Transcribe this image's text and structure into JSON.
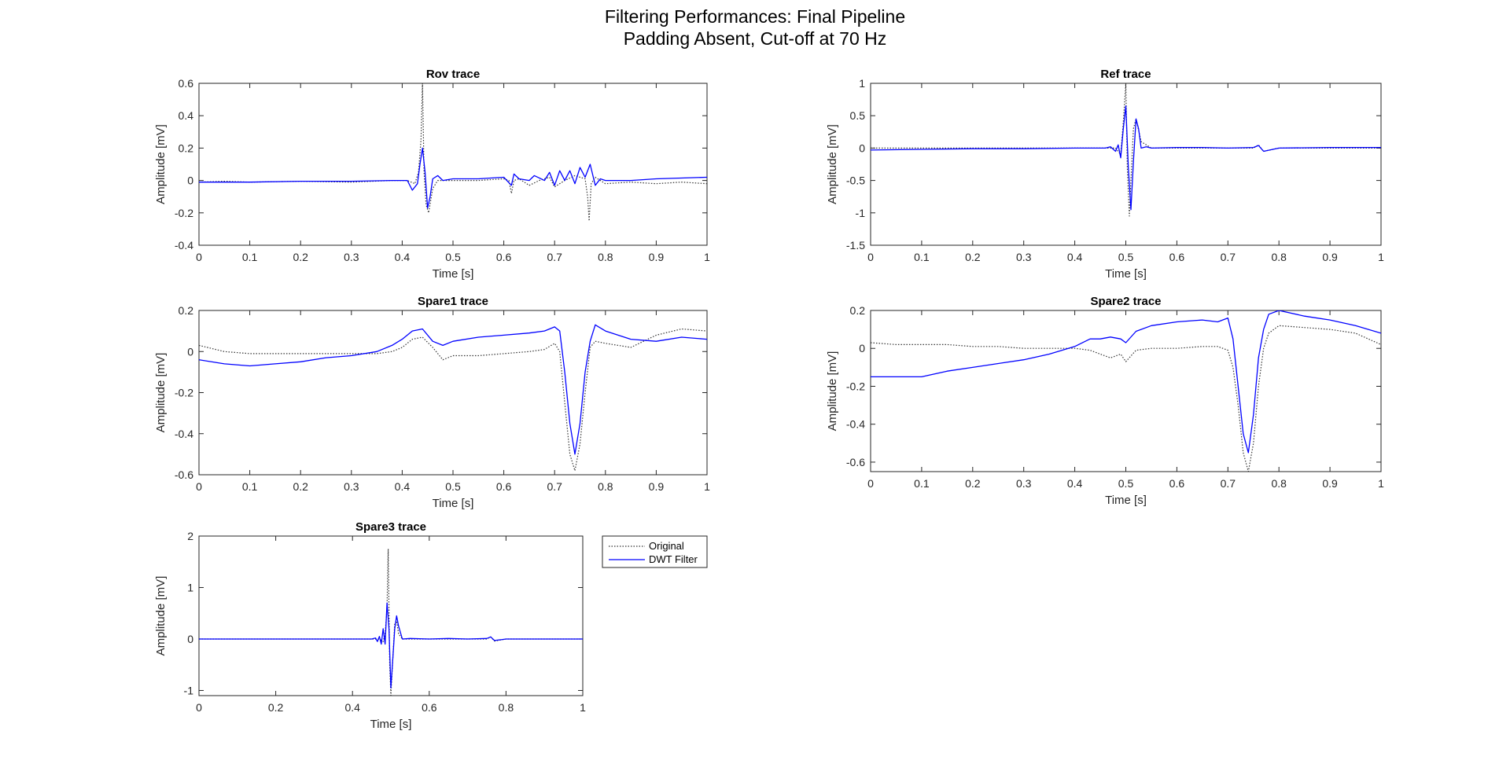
{
  "figure": {
    "title_line1": "Filtering Performances: Final Pipeline",
    "title_line2": "Padding Absent, Cut-off at 70 Hz"
  },
  "colors": {
    "original": "#333333",
    "filtered": "#0000ff",
    "axes": "#262626"
  },
  "chart_data": [
    {
      "type": "line",
      "title": "Rov trace",
      "xlabel": "Time [s]",
      "ylabel": "Amplitude [mV]",
      "xlim": [
        0,
        1
      ],
      "ylim": [
        -0.4,
        0.6
      ],
      "xticks": [
        0,
        0.1,
        0.2,
        0.3,
        0.4,
        0.5,
        0.6,
        0.7,
        0.8,
        0.9,
        1
      ],
      "xtick_labels": [
        "0",
        "0.1",
        "0.2",
        "0.3",
        "0.4",
        "0.5",
        "0.6",
        "0.7",
        "0.8",
        "0.9",
        "1"
      ],
      "yticks": [
        -0.4,
        -0.2,
        0,
        0.2,
        0.4,
        0.6
      ],
      "ytick_labels": [
        "-0.4",
        "-0.2",
        "0",
        "0.2",
        "0.4",
        "0.6"
      ],
      "grid": false,
      "series": [
        {
          "name": "Original",
          "style": "dotted",
          "x": [
            0,
            0.05,
            0.1,
            0.2,
            0.3,
            0.38,
            0.41,
            0.425,
            0.432,
            0.437,
            0.44,
            0.443,
            0.447,
            0.452,
            0.46,
            0.47,
            0.5,
            0.55,
            0.6,
            0.61,
            0.615,
            0.62,
            0.63,
            0.65,
            0.67,
            0.69,
            0.7,
            0.72,
            0.74,
            0.76,
            0.765,
            0.768,
            0.772,
            0.78,
            0.8,
            0.85,
            0.9,
            0.95,
            1
          ],
          "y": [
            -0.01,
            -0.005,
            -0.01,
            -0.005,
            -0.01,
            0.0,
            0.0,
            -0.02,
            0.05,
            0.25,
            0.6,
            0.05,
            -0.15,
            -0.2,
            -0.05,
            0.0,
            0.0,
            0.0,
            0.01,
            0.0,
            -0.08,
            0.0,
            0.01,
            -0.03,
            0.0,
            0.02,
            -0.04,
            0.0,
            0.03,
            0.01,
            -0.1,
            -0.25,
            -0.02,
            0.02,
            -0.02,
            -0.01,
            -0.02,
            -0.01,
            -0.02
          ]
        },
        {
          "name": "DWT Filter",
          "style": "solid",
          "x": [
            0,
            0.1,
            0.2,
            0.3,
            0.38,
            0.41,
            0.42,
            0.43,
            0.435,
            0.44,
            0.445,
            0.45,
            0.455,
            0.46,
            0.47,
            0.48,
            0.5,
            0.55,
            0.6,
            0.615,
            0.62,
            0.63,
            0.65,
            0.66,
            0.68,
            0.69,
            0.7,
            0.71,
            0.72,
            0.73,
            0.74,
            0.75,
            0.76,
            0.77,
            0.78,
            0.79,
            0.8,
            0.85,
            0.9,
            0.95,
            1
          ],
          "y": [
            -0.01,
            -0.01,
            -0.005,
            -0.005,
            0.0,
            0.0,
            -0.06,
            -0.02,
            0.1,
            0.2,
            0.05,
            -0.17,
            -0.1,
            0.01,
            0.03,
            0.0,
            0.01,
            0.01,
            0.02,
            -0.03,
            0.04,
            0.01,
            0.0,
            0.03,
            0.0,
            0.05,
            -0.03,
            0.06,
            0.0,
            0.06,
            -0.02,
            0.08,
            0.02,
            0.1,
            -0.03,
            0.01,
            0.0,
            0.0,
            0.01,
            0.015,
            0.02
          ]
        }
      ]
    },
    {
      "type": "line",
      "title": "Ref trace",
      "xlabel": "Time [s]",
      "ylabel": "Amplitude [mV]",
      "xlim": [
        0,
        1
      ],
      "ylim": [
        -1.5,
        1
      ],
      "xticks": [
        0,
        0.1,
        0.2,
        0.3,
        0.4,
        0.5,
        0.6,
        0.7,
        0.8,
        0.9,
        1
      ],
      "xtick_labels": [
        "0",
        "0.1",
        "0.2",
        "0.3",
        "0.4",
        "0.5",
        "0.6",
        "0.7",
        "0.8",
        "0.9",
        "1"
      ],
      "yticks": [
        -1.5,
        -1,
        -0.5,
        0,
        0.5,
        1
      ],
      "ytick_labels": [
        "-1.5",
        "-1",
        "-0.5",
        "0",
        "0.5",
        "1"
      ],
      "grid": false,
      "series": [
        {
          "name": "Original",
          "style": "dotted",
          "x": [
            0,
            0.1,
            0.2,
            0.3,
            0.4,
            0.47,
            0.48,
            0.49,
            0.495,
            0.5,
            0.503,
            0.507,
            0.51,
            0.515,
            0.52,
            0.53,
            0.55,
            0.6,
            0.7,
            0.75,
            0.76,
            0.77,
            0.8,
            0.9,
            1
          ],
          "y": [
            0.0,
            0.0,
            0.0,
            0.0,
            0.0,
            0.0,
            0.0,
            -0.1,
            0.4,
            1.0,
            -0.3,
            -1.05,
            -0.5,
            0.3,
            0.45,
            0.1,
            0.0,
            0.0,
            0.0,
            0.0,
            0.05,
            -0.05,
            0.0,
            0.0,
            0.0
          ]
        },
        {
          "name": "DWT Filter",
          "style": "solid",
          "x": [
            0,
            0.1,
            0.2,
            0.3,
            0.4,
            0.46,
            0.47,
            0.48,
            0.485,
            0.49,
            0.495,
            0.5,
            0.505,
            0.51,
            0.515,
            0.52,
            0.525,
            0.53,
            0.54,
            0.55,
            0.6,
            0.65,
            0.7,
            0.75,
            0.76,
            0.77,
            0.8,
            0.9,
            1
          ],
          "y": [
            -0.03,
            -0.02,
            -0.01,
            -0.01,
            0.0,
            0.0,
            0.02,
            -0.05,
            0.05,
            -0.15,
            0.3,
            0.65,
            -0.3,
            -0.95,
            -0.2,
            0.45,
            0.3,
            0.0,
            0.02,
            0.0,
            0.01,
            0.01,
            0.0,
            0.01,
            0.04,
            -0.05,
            0.0,
            0.01,
            0.01
          ]
        }
      ]
    },
    {
      "type": "line",
      "title": "Spare1 trace",
      "xlabel": "Time [s]",
      "ylabel": "Amplitude [mV]",
      "xlim": [
        0,
        1
      ],
      "ylim": [
        -0.6,
        0.2
      ],
      "xticks": [
        0,
        0.1,
        0.2,
        0.3,
        0.4,
        0.5,
        0.6,
        0.7,
        0.8,
        0.9,
        1
      ],
      "xtick_labels": [
        "0",
        "0.1",
        "0.2",
        "0.3",
        "0.4",
        "0.5",
        "0.6",
        "0.7",
        "0.8",
        "0.9",
        "1"
      ],
      "yticks": [
        -0.6,
        -0.4,
        -0.2,
        0,
        0.2
      ],
      "ytick_labels": [
        "-0.6",
        "-0.4",
        "-0.2",
        "0",
        "0.2"
      ],
      "grid": false,
      "series": [
        {
          "name": "Original",
          "style": "dotted",
          "x": [
            0,
            0.05,
            0.1,
            0.15,
            0.2,
            0.25,
            0.3,
            0.35,
            0.38,
            0.4,
            0.42,
            0.44,
            0.46,
            0.48,
            0.5,
            0.55,
            0.6,
            0.65,
            0.68,
            0.7,
            0.71,
            0.72,
            0.73,
            0.74,
            0.75,
            0.76,
            0.77,
            0.78,
            0.8,
            0.85,
            0.9,
            0.95,
            1
          ],
          "y": [
            0.03,
            0.0,
            -0.01,
            -0.01,
            -0.01,
            -0.01,
            -0.01,
            -0.01,
            0.0,
            0.02,
            0.06,
            0.07,
            0.02,
            -0.04,
            -0.02,
            -0.02,
            -0.01,
            0.0,
            0.01,
            0.04,
            0.0,
            -0.25,
            -0.5,
            -0.58,
            -0.45,
            -0.2,
            0.02,
            0.05,
            0.04,
            0.02,
            0.08,
            0.11,
            0.1
          ]
        },
        {
          "name": "DWT Filter",
          "style": "solid",
          "x": [
            0,
            0.05,
            0.1,
            0.15,
            0.2,
            0.25,
            0.3,
            0.35,
            0.38,
            0.4,
            0.42,
            0.44,
            0.46,
            0.48,
            0.5,
            0.55,
            0.6,
            0.65,
            0.68,
            0.7,
            0.71,
            0.72,
            0.73,
            0.74,
            0.75,
            0.76,
            0.77,
            0.78,
            0.8,
            0.85,
            0.9,
            0.95,
            1
          ],
          "y": [
            -0.04,
            -0.06,
            -0.07,
            -0.06,
            -0.05,
            -0.03,
            -0.02,
            0.0,
            0.03,
            0.06,
            0.1,
            0.11,
            0.05,
            0.03,
            0.05,
            0.07,
            0.08,
            0.09,
            0.1,
            0.12,
            0.1,
            -0.1,
            -0.35,
            -0.5,
            -0.35,
            -0.1,
            0.05,
            0.13,
            0.1,
            0.06,
            0.05,
            0.07,
            0.06
          ]
        }
      ]
    },
    {
      "type": "line",
      "title": "Spare2 trace",
      "xlabel": "Time [s]",
      "ylabel": "Amplitude [mV]",
      "xlim": [
        0,
        1
      ],
      "ylim": [
        -0.65,
        0.2
      ],
      "xticks": [
        0,
        0.1,
        0.2,
        0.3,
        0.4,
        0.5,
        0.6,
        0.7,
        0.8,
        0.9,
        1
      ],
      "xtick_labels": [
        "0",
        "0.1",
        "0.2",
        "0.3",
        "0.4",
        "0.5",
        "0.6",
        "0.7",
        "0.8",
        "0.9",
        "1"
      ],
      "yticks": [
        -0.6,
        -0.4,
        -0.2,
        0,
        0.2
      ],
      "ytick_labels": [
        "-0.6",
        "-0.4",
        "-0.2",
        "0",
        "0.2"
      ],
      "grid": false,
      "series": [
        {
          "name": "Original",
          "style": "dotted",
          "x": [
            0,
            0.05,
            0.1,
            0.15,
            0.2,
            0.25,
            0.3,
            0.35,
            0.4,
            0.43,
            0.45,
            0.47,
            0.49,
            0.5,
            0.52,
            0.55,
            0.6,
            0.65,
            0.68,
            0.7,
            0.71,
            0.72,
            0.73,
            0.74,
            0.75,
            0.76,
            0.77,
            0.78,
            0.8,
            0.85,
            0.9,
            0.95,
            1
          ],
          "y": [
            0.03,
            0.02,
            0.02,
            0.02,
            0.01,
            0.01,
            0.0,
            0.0,
            0.0,
            -0.01,
            -0.03,
            -0.05,
            -0.03,
            -0.07,
            -0.01,
            0.0,
            0.0,
            0.01,
            0.01,
            -0.01,
            -0.1,
            -0.3,
            -0.55,
            -0.65,
            -0.5,
            -0.2,
            0.0,
            0.08,
            0.12,
            0.11,
            0.1,
            0.08,
            0.02
          ]
        },
        {
          "name": "DWT Filter",
          "style": "solid",
          "x": [
            0,
            0.05,
            0.1,
            0.15,
            0.2,
            0.25,
            0.3,
            0.35,
            0.4,
            0.43,
            0.45,
            0.47,
            0.49,
            0.5,
            0.52,
            0.55,
            0.6,
            0.65,
            0.68,
            0.7,
            0.71,
            0.72,
            0.73,
            0.74,
            0.75,
            0.76,
            0.77,
            0.78,
            0.8,
            0.85,
            0.9,
            0.95,
            1
          ],
          "y": [
            -0.15,
            -0.15,
            -0.15,
            -0.12,
            -0.1,
            -0.08,
            -0.06,
            -0.03,
            0.01,
            0.05,
            0.05,
            0.06,
            0.05,
            0.03,
            0.09,
            0.12,
            0.14,
            0.15,
            0.14,
            0.16,
            0.05,
            -0.2,
            -0.45,
            -0.55,
            -0.35,
            -0.05,
            0.1,
            0.18,
            0.2,
            0.17,
            0.15,
            0.12,
            0.08
          ]
        }
      ]
    },
    {
      "type": "line",
      "title": "Spare3 trace",
      "xlabel": "Time [s]",
      "ylabel": "Amplitude [mV]",
      "xlim": [
        0,
        1
      ],
      "ylim": [
        -1.1,
        2
      ],
      "xticks": [
        0,
        0.2,
        0.4,
        0.6,
        0.8,
        1
      ],
      "xtick_labels": [
        "0",
        "0.2",
        "0.4",
        "0.6",
        "0.8",
        "1"
      ],
      "yticks": [
        -1,
        0,
        1,
        2
      ],
      "ytick_labels": [
        "-1",
        "0",
        "1",
        "2"
      ],
      "grid": false,
      "series": [
        {
          "name": "Original",
          "style": "dotted",
          "x": [
            0,
            0.1,
            0.2,
            0.3,
            0.4,
            0.46,
            0.47,
            0.48,
            0.485,
            0.49,
            0.493,
            0.497,
            0.5,
            0.505,
            0.51,
            0.515,
            0.52,
            0.53,
            0.55,
            0.6,
            0.7,
            0.75,
            0.76,
            0.77,
            0.8,
            0.9,
            1
          ],
          "y": [
            0.0,
            0.0,
            0.0,
            0.0,
            0.0,
            0.0,
            0.0,
            -0.05,
            0.1,
            0.6,
            1.75,
            -0.5,
            -1.1,
            -0.4,
            0.3,
            0.35,
            0.1,
            0.0,
            0.0,
            0.0,
            0.0,
            0.0,
            0.04,
            -0.04,
            0.0,
            0.0,
            0.0
          ]
        },
        {
          "name": "DWT Filter",
          "style": "solid",
          "x": [
            0,
            0.1,
            0.2,
            0.3,
            0.4,
            0.45,
            0.46,
            0.465,
            0.47,
            0.475,
            0.48,
            0.485,
            0.49,
            0.495,
            0.5,
            0.505,
            0.51,
            0.515,
            0.52,
            0.53,
            0.55,
            0.6,
            0.65,
            0.7,
            0.75,
            0.76,
            0.77,
            0.8,
            0.9,
            1
          ],
          "y": [
            0.0,
            0.0,
            0.0,
            0.0,
            0.0,
            0.0,
            0.02,
            -0.05,
            0.05,
            -0.1,
            0.2,
            -0.1,
            0.7,
            0.2,
            -0.95,
            -0.4,
            0.2,
            0.45,
            0.25,
            0.0,
            0.01,
            0.0,
            0.01,
            0.0,
            0.01,
            0.04,
            -0.03,
            0.0,
            0.0,
            0.0
          ]
        }
      ]
    }
  ],
  "legend": {
    "location": "right of Spare3 trace",
    "entries": [
      {
        "label": "Original",
        "style": "dotted"
      },
      {
        "label": "DWT Filter",
        "style": "solid"
      }
    ]
  }
}
